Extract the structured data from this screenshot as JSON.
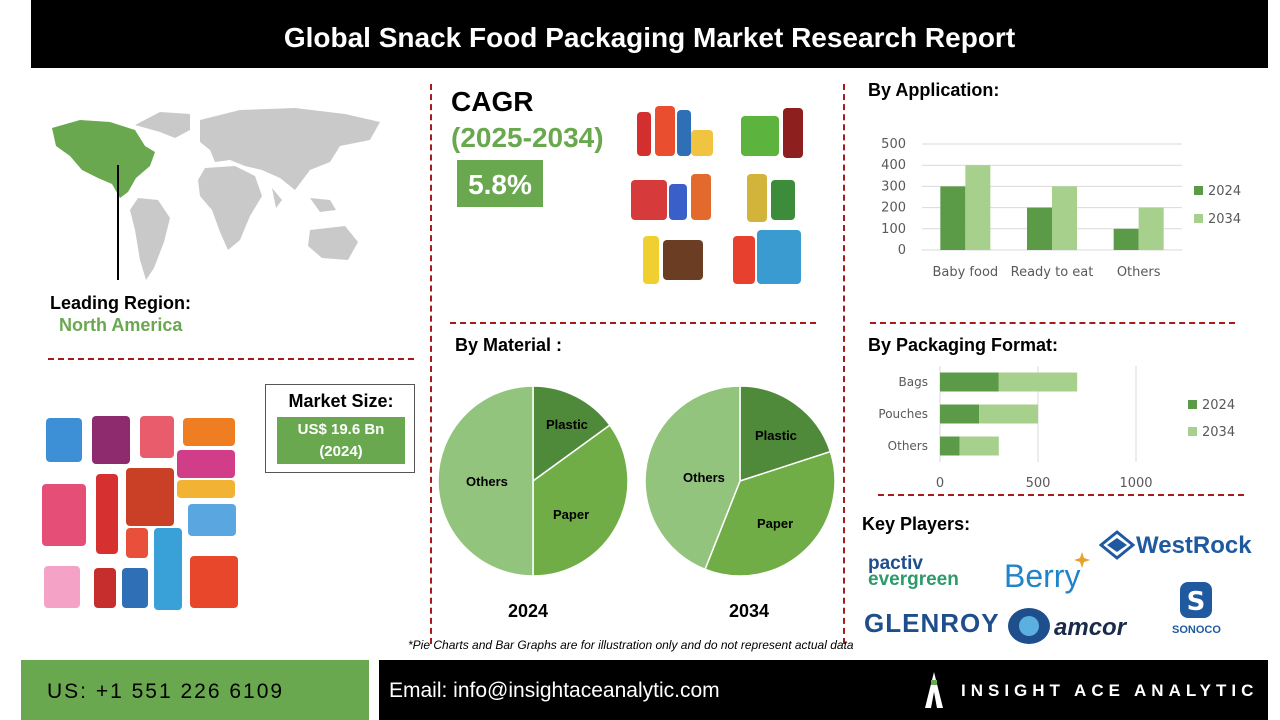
{
  "header": {
    "title": "Global Snack Food Packaging Market Research Report"
  },
  "region": {
    "label": "Leading Region:",
    "value": "North America"
  },
  "market_size": {
    "label": "Market Size:",
    "value_line1": "US$ 19.6 Bn",
    "value_line2": "(2024)"
  },
  "cagr": {
    "label": "CAGR",
    "years": "(2025-2034)",
    "value": "5.8%"
  },
  "colors": {
    "dark_green": "#6aa84f",
    "mid_green": "#5b9a46",
    "light_green": "#a8d08d",
    "divider": "#a61c1c"
  },
  "chart_data": [
    {
      "type": "bar",
      "title": "By Application:",
      "categories": [
        "Baby food",
        "Ready to eat",
        "Others"
      ],
      "series": [
        {
          "name": "2024",
          "values": [
            300,
            200,
            100
          ]
        },
        {
          "name": "2034",
          "values": [
            400,
            300,
            200
          ]
        }
      ],
      "ylim": [
        0,
        500
      ],
      "yticks": [
        "0",
        "100",
        "200",
        "300",
        "400",
        "500"
      ],
      "grid": true,
      "legend": "right"
    },
    {
      "type": "bar",
      "orientation": "horizontal",
      "stacked": true,
      "title": "By Packaging Format:",
      "categories": [
        "Bags",
        "Pouches",
        "Others"
      ],
      "series": [
        {
          "name": "2024",
          "values": [
            300,
            200,
            100
          ]
        },
        {
          "name": "2034",
          "values": [
            400,
            300,
            200
          ]
        }
      ],
      "xlim": [
        0,
        1000
      ],
      "xticks": [
        "0",
        "500",
        "1000"
      ],
      "grid": true,
      "legend": "right"
    },
    {
      "type": "pie",
      "title": "By Material :",
      "year_label": "2024",
      "slices": [
        {
          "label": "Plastic",
          "value": 15
        },
        {
          "label": "Paper",
          "value": 35
        },
        {
          "label": "Others",
          "value": 50
        }
      ]
    },
    {
      "type": "pie",
      "year_label": "2034",
      "slices": [
        {
          "label": "Plastic",
          "value": 20
        },
        {
          "label": "Paper",
          "value": 36
        },
        {
          "label": "Others",
          "value": 44
        }
      ]
    }
  ],
  "key_players": {
    "label": "Key Players:",
    "logos": [
      "pactiv",
      "evergreen",
      "Berry",
      "WestRock",
      "GLENROY",
      "amcor",
      "SONOCO"
    ]
  },
  "footnote": "*Pie Charts and Bar Graphs are for illustration only and do not represent actual data",
  "footer": {
    "phone": "US: +1 551 226 6109",
    "email": "Email: info@insightaceanalytic.com",
    "brand": "INSIGHT ACE ANALYTIC"
  }
}
